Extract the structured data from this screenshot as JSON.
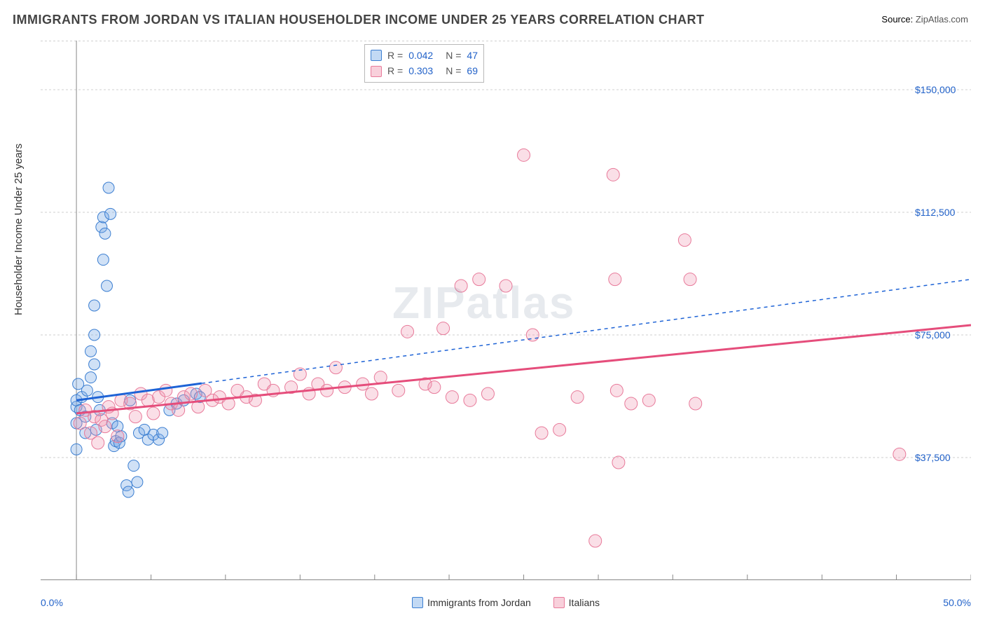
{
  "title": "IMMIGRANTS FROM JORDAN VS ITALIAN HOUSEHOLDER INCOME UNDER 25 YEARS CORRELATION CHART",
  "source_label": "Source:",
  "source_text": "ZipAtlas.com",
  "yaxis_label": "Householder Income Under 25 years",
  "watermark": "ZIPatlas",
  "chart": {
    "type": "scatter",
    "x_domain_pct": [
      -2.0,
      50.0
    ],
    "y_domain": [
      0,
      165000
    ],
    "y_ticks": [
      37500,
      75000,
      112500,
      150000
    ],
    "y_tick_labels": [
      "$37,500",
      "$75,000",
      "$112,500",
      "$150,000"
    ],
    "x_ticks_major_pct": [
      0,
      4.17,
      8.33,
      12.5,
      16.67,
      20.83,
      25.0,
      29.17,
      33.33,
      37.5,
      41.67,
      45.83,
      50.0
    ],
    "x_tick_labels": [
      "0.0%",
      "50.0%"
    ],
    "grid_color": "#cfcfcf",
    "axis_color": "#888888",
    "plot_bg": "#ffffff",
    "series": [
      {
        "key": "jordan",
        "label": "Immigrants from Jordan",
        "marker_fill": "rgba(120,170,230,0.35)",
        "marker_stroke": "#3b7ed1",
        "marker_r": 8,
        "line_color": "#1e63d6",
        "line_width": 3,
        "line_dash_ext": "5,5",
        "R": "0.042",
        "N": "47",
        "solid_x_end_pct": 7.0,
        "trend_start": [
          0,
          55000
        ],
        "trend_end": [
          50,
          92000
        ],
        "points": [
          [
            0.0,
            53000
          ],
          [
            0.0,
            55000
          ],
          [
            0.0,
            48000
          ],
          [
            0.0,
            40000
          ],
          [
            0.1,
            60000
          ],
          [
            0.2,
            52000
          ],
          [
            0.3,
            56000
          ],
          [
            0.5,
            50000
          ],
          [
            0.5,
            45000
          ],
          [
            0.6,
            58000
          ],
          [
            0.8,
            62000
          ],
          [
            0.8,
            70000
          ],
          [
            1.0,
            66000
          ],
          [
            1.0,
            75000
          ],
          [
            1.0,
            84000
          ],
          [
            1.1,
            46000
          ],
          [
            1.2,
            56000
          ],
          [
            1.3,
            52000
          ],
          [
            1.4,
            108000
          ],
          [
            1.5,
            111000
          ],
          [
            1.5,
            98000
          ],
          [
            1.6,
            106000
          ],
          [
            1.7,
            90000
          ],
          [
            1.8,
            120000
          ],
          [
            1.9,
            112000
          ],
          [
            2.0,
            48000
          ],
          [
            2.1,
            41000
          ],
          [
            2.2,
            42500
          ],
          [
            2.3,
            47000
          ],
          [
            2.4,
            42000
          ],
          [
            2.5,
            44000
          ],
          [
            2.8,
            29000
          ],
          [
            2.9,
            27000
          ],
          [
            3.0,
            55000
          ],
          [
            3.2,
            35000
          ],
          [
            3.4,
            30000
          ],
          [
            3.5,
            45000
          ],
          [
            3.8,
            46000
          ],
          [
            4.0,
            43000
          ],
          [
            4.3,
            44500
          ],
          [
            4.6,
            43000
          ],
          [
            4.8,
            45000
          ],
          [
            5.2,
            52000
          ],
          [
            5.6,
            54000
          ],
          [
            6.0,
            55000
          ],
          [
            6.7,
            57000
          ],
          [
            6.9,
            56000
          ]
        ]
      },
      {
        "key": "italians",
        "label": "Italians",
        "marker_fill": "rgba(240,150,175,0.30)",
        "marker_stroke": "#e87a9a",
        "marker_r": 9,
        "line_color": "#e54d7b",
        "line_width": 3,
        "R": "0.303",
        "N": "69",
        "solid_x_end_pct": 50.0,
        "trend_start": [
          0,
          51000
        ],
        "trend_end": [
          50,
          78000
        ],
        "points": [
          [
            0.2,
            48000
          ],
          [
            0.5,
            52000
          ],
          [
            0.8,
            45000
          ],
          [
            1.0,
            50000
          ],
          [
            1.2,
            42000
          ],
          [
            1.4,
            49000
          ],
          [
            1.6,
            47000
          ],
          [
            1.8,
            53000
          ],
          [
            2.0,
            51000
          ],
          [
            2.3,
            44000
          ],
          [
            2.5,
            55000
          ],
          [
            3.0,
            54000
          ],
          [
            3.3,
            50000
          ],
          [
            3.6,
            57000
          ],
          [
            4.0,
            55000
          ],
          [
            4.3,
            51000
          ],
          [
            4.6,
            56000
          ],
          [
            5.0,
            58000
          ],
          [
            5.3,
            54000
          ],
          [
            5.7,
            52000
          ],
          [
            6.0,
            56000
          ],
          [
            6.4,
            57000
          ],
          [
            6.8,
            53000
          ],
          [
            7.2,
            58000
          ],
          [
            7.6,
            55000
          ],
          [
            8.0,
            56000
          ],
          [
            8.5,
            54000
          ],
          [
            9.0,
            58000
          ],
          [
            9.5,
            56000
          ],
          [
            10.0,
            55000
          ],
          [
            10.5,
            60000
          ],
          [
            11.0,
            58000
          ],
          [
            12.0,
            59000
          ],
          [
            12.5,
            63000
          ],
          [
            13.0,
            57000
          ],
          [
            13.5,
            60000
          ],
          [
            14.0,
            58000
          ],
          [
            14.5,
            65000
          ],
          [
            15.0,
            59000
          ],
          [
            16.0,
            60000
          ],
          [
            16.5,
            57000
          ],
          [
            17.0,
            62000
          ],
          [
            18.0,
            58000
          ],
          [
            18.5,
            76000
          ],
          [
            19.5,
            60000
          ],
          [
            20.0,
            59000
          ],
          [
            20.5,
            77000
          ],
          [
            21.0,
            56000
          ],
          [
            21.5,
            90000
          ],
          [
            22.0,
            55000
          ],
          [
            22.5,
            92000
          ],
          [
            23.0,
            57000
          ],
          [
            24.0,
            90000
          ],
          [
            25.0,
            130000
          ],
          [
            25.5,
            75000
          ],
          [
            26.0,
            45000
          ],
          [
            27.0,
            46000
          ],
          [
            28.0,
            56000
          ],
          [
            29.0,
            12000
          ],
          [
            30.0,
            124000
          ],
          [
            30.1,
            92000
          ],
          [
            30.2,
            58000
          ],
          [
            30.3,
            36000
          ],
          [
            31.0,
            54000
          ],
          [
            32.0,
            55000
          ],
          [
            34.0,
            104000
          ],
          [
            34.3,
            92000
          ],
          [
            34.6,
            54000
          ],
          [
            46.0,
            38500
          ]
        ]
      }
    ],
    "legend_swatch_border": {
      "jordan": "#3b7ed1",
      "italians": "#e87a9a"
    },
    "legend_swatch_fill": {
      "jordan": "rgba(120,170,230,0.45)",
      "italians": "rgba(240,150,175,0.45)"
    }
  }
}
